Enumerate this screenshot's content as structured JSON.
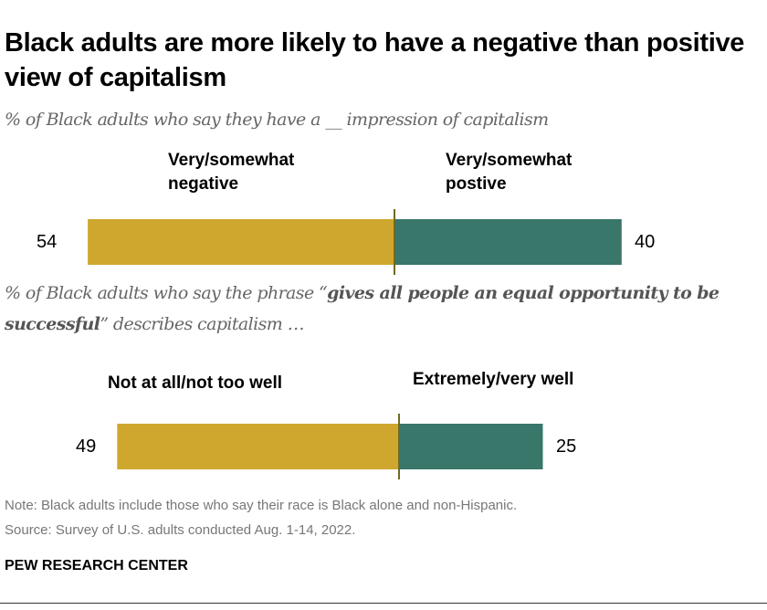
{
  "title": "Black adults are more likely to have a negative than positive view of capitalism",
  "subtitle1": "% of Black adults who say they have a __ impression of capitalism",
  "subtitle2": {
    "pre": "% of Black adults who say the phrase “",
    "bold": "gives all people an equal opportunity to be successful",
    "post": "” describes capitalism …"
  },
  "chart_data": [
    {
      "type": "bar",
      "orientation": "horizontal-diverging",
      "categories": [
        "Very/somewhat negative",
        "Very/somewhat postive"
      ],
      "values": [
        54,
        40
      ],
      "colors": [
        "#CFA72F",
        "#38776A"
      ]
    },
    {
      "type": "bar",
      "orientation": "horizontal-diverging",
      "categories": [
        "Not at all/not too well",
        "Extremely/very well"
      ],
      "values": [
        49,
        25
      ],
      "colors": [
        "#CFA72F",
        "#38776A"
      ]
    }
  ],
  "labels": {
    "c1_neg": "54",
    "c1_pos": "40",
    "c2_neg": "49",
    "c2_pos": "25"
  },
  "note": "Note: Black adults include those who say their race is Black alone and non-Hispanic.",
  "source": "Source: Survey of U.S. adults conducted Aug. 1-14, 2022.",
  "brand": "PEW RESEARCH CENTER"
}
